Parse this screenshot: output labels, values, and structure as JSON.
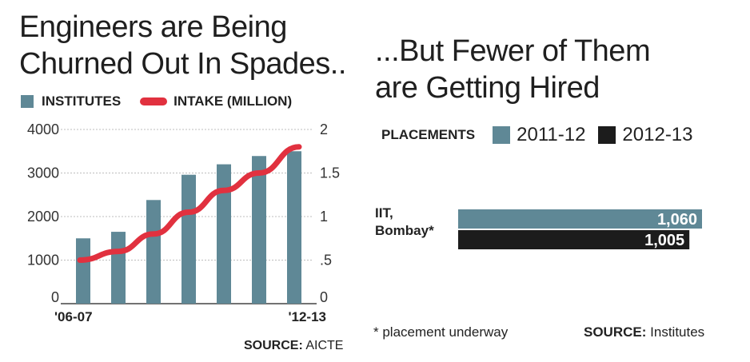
{
  "left": {
    "title_line1": "Engineers are Being",
    "title_line2": "Churned Out In Spades..",
    "legend_bar": "INSTITUTES",
    "legend_line": "INTAKE (MILLION)",
    "source_label": "SOURCE:",
    "source_value": "AICTE"
  },
  "right": {
    "title_line1": "...But Fewer of Them",
    "title_line2": "are Getting Hired",
    "legend_label": "PLACEMENTS",
    "legend_2011": "2011-12",
    "legend_2012": "2012-13",
    "footnote": "* placement underway",
    "source_label": "SOURCE:",
    "source_value": "Institutes"
  },
  "colors": {
    "bar": "#5f8896",
    "line": "#e1313f",
    "dark": "#1c1c1c",
    "grid": "#bdbdbd"
  },
  "chart_data": [
    {
      "type": "bar",
      "categories": [
        "'06-07",
        "",
        "",
        "",
        "",
        "",
        "'12-13"
      ],
      "series": [
        {
          "name": "INSTITUTES",
          "axis": "left",
          "values": [
            1500,
            1650,
            2380,
            2960,
            3200,
            3390,
            3500
          ]
        },
        {
          "name": "INTAKE (MILLION)",
          "axis": "right",
          "type": "line",
          "values": [
            0.5,
            0.6,
            0.8,
            1.05,
            1.3,
            1.5,
            1.8
          ]
        }
      ],
      "y_ticks": [
        0,
        1000,
        2000,
        3000,
        4000
      ],
      "y_tick_labels": [
        "0",
        "1000",
        "2000",
        "3000",
        "4000"
      ],
      "ylim": [
        0,
        4000
      ],
      "y2_ticks": [
        0,
        0.5,
        1,
        1.5,
        2
      ],
      "y2_tick_labels": [
        "0",
        ".5",
        "1",
        "1.5",
        "2"
      ],
      "y2lim": [
        0,
        2
      ],
      "grid": true,
      "legend": "top-left"
    },
    {
      "type": "bar",
      "orientation": "horizontal",
      "categories": [
        "IIT, Bombay*"
      ],
      "category_lines": [
        "IIT,",
        "Bombay*"
      ],
      "series": [
        {
          "name": "2011-12",
          "values": [
            1060
          ],
          "labels": [
            "1,060"
          ]
        },
        {
          "name": "2012-13",
          "values": [
            1005
          ],
          "labels": [
            "1,005"
          ]
        }
      ],
      "xlim": [
        0,
        1060
      ],
      "legend": "top"
    }
  ]
}
